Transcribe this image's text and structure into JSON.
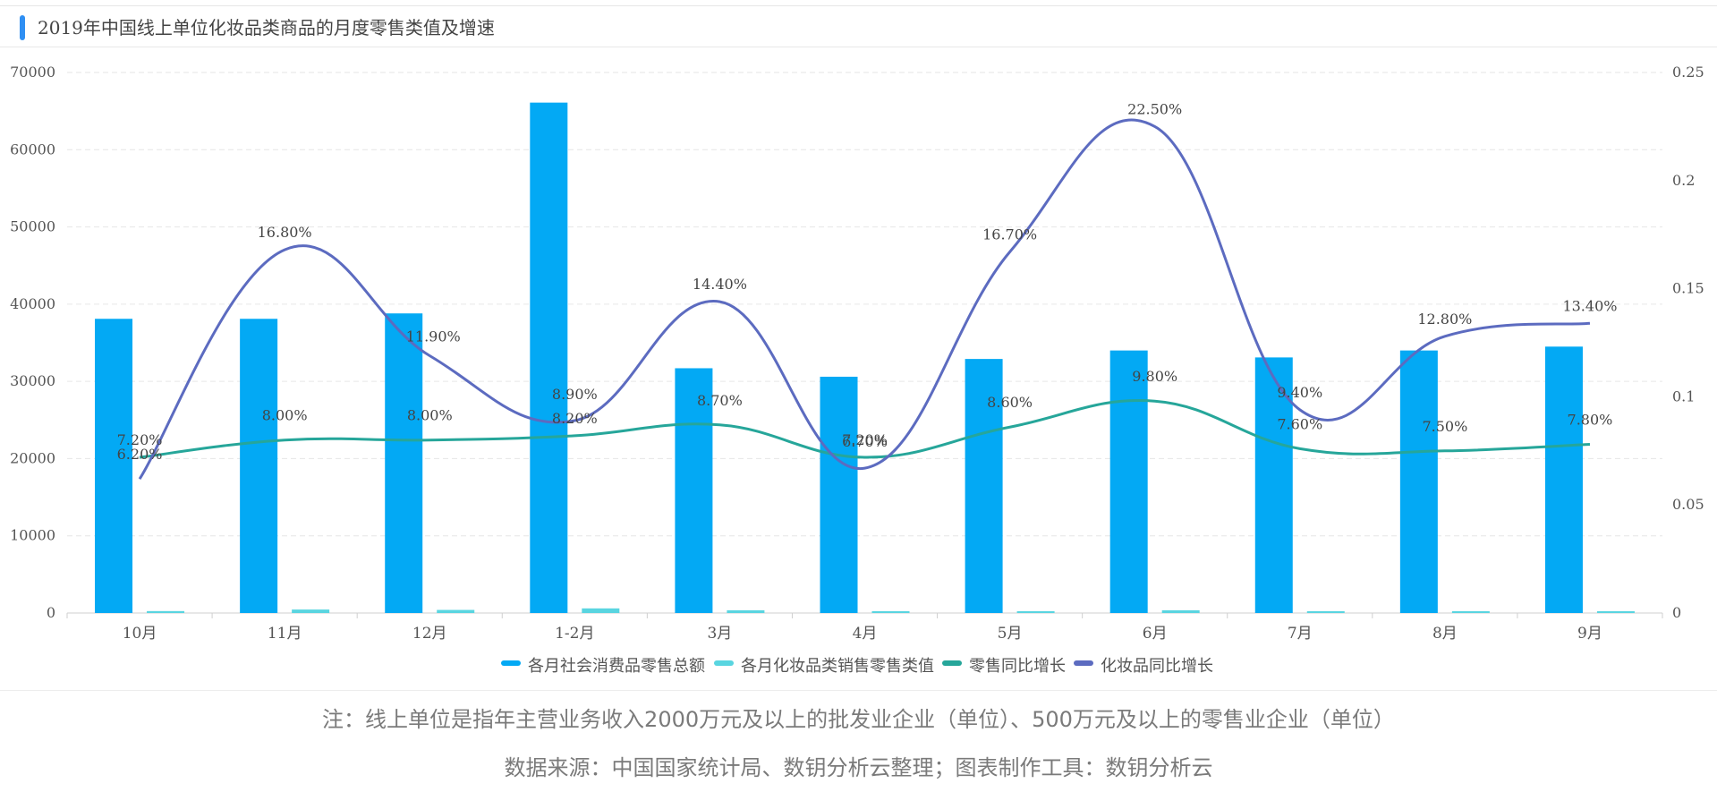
{
  "title": "2019年中国线上单位化妆品类商品的月度零售类值及增速",
  "notes": {
    "line1": "注：线上单位是指年主营业务收入2000万元及以上的批发业企业（单位）、500万元及以上的零售业企业（单位）",
    "line2": "数据来源：中国国家统计局、数钥分析云整理；图表制作工具：数钥分析云"
  },
  "colors": {
    "accent": "#2f8ff3",
    "total_bar": "#03a9f4",
    "cosmetics_bar": "#59d5e0",
    "retail_growth": "#26a69a",
    "cosmetics_growth": "#5c6bc0"
  },
  "chart_data": {
    "type": "bar",
    "title": "2019年中国线上单位化妆品类商品的月度零售类值及增速",
    "categories": [
      "10月",
      "11月",
      "12月",
      "1-2月",
      "3月",
      "4月",
      "5月",
      "6月",
      "7月",
      "8月",
      "9月"
    ],
    "y_left": {
      "min": 0,
      "max": 70000,
      "ticks": [
        "0",
        "10000",
        "20000",
        "30000",
        "40000",
        "50000",
        "60000",
        "70000"
      ]
    },
    "y_right": {
      "min": 0,
      "max": 0.25,
      "ticks": [
        "0",
        "0.05",
        "0.1",
        "0.15",
        "0.2",
        "0.25"
      ]
    },
    "grid": true,
    "legend_position": "bottom-center",
    "series": [
      {
        "name": "各月社会消费品零售总额",
        "type": "bar",
        "axis": "left",
        "values": [
          38100,
          38100,
          38800,
          66100,
          31700,
          30600,
          32900,
          34000,
          33100,
          34000,
          34500
        ]
      },
      {
        "name": "各月化妆品类销售零售类值",
        "type": "bar",
        "axis": "left",
        "values": [
          250,
          450,
          400,
          600,
          350,
          200,
          200,
          350,
          200,
          200,
          200
        ]
      },
      {
        "name": "零售同比增长",
        "type": "line",
        "axis": "right",
        "values": [
          0.072,
          0.08,
          0.08,
          0.082,
          0.087,
          0.072,
          0.086,
          0.098,
          0.076,
          0.075,
          0.078
        ],
        "labels": [
          "7.20%",
          "8.00%",
          "8.00%",
          "8.20%",
          "8.70%",
          "7.20%",
          "8.60%",
          "9.80%",
          "7.60%",
          "7.50%",
          "7.80%"
        ]
      },
      {
        "name": "化妆品同比增长",
        "type": "line",
        "axis": "right",
        "values": [
          0.062,
          0.168,
          0.119,
          0.089,
          0.144,
          0.067,
          0.167,
          0.225,
          0.094,
          0.128,
          0.134
        ],
        "labels": [
          "6.20%",
          "16.80%",
          "11.90%",
          "8.90%",
          "14.40%",
          "6.70%",
          "16.70%",
          "22.50%",
          "9.40%",
          "12.80%",
          "13.40%"
        ]
      }
    ]
  }
}
